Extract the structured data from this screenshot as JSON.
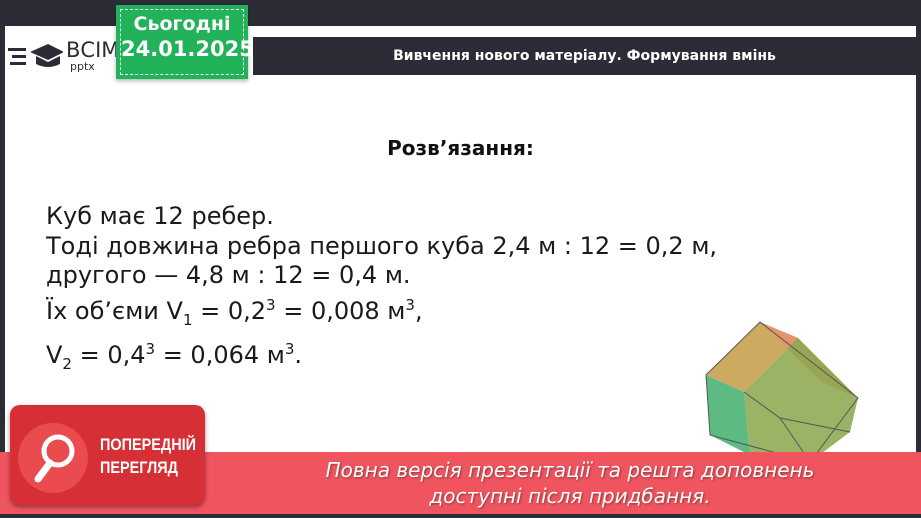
{
  "logo": {
    "brand": "ВСІМ",
    "sub": "pptx"
  },
  "date_tag": {
    "label": "Сьогодні",
    "date": "24.01.2025"
  },
  "header": {
    "title": "Вивчення нового матеріалу.  Формування вмінь"
  },
  "content": {
    "title": "Розв’язання:",
    "line1": "Куб має 12 ребер.",
    "line2": "Тоді довжина ребра першого куба 2,4 м : 12 = 0,2 м,",
    "line3": "другого — 4,8 м : 12 = 0,4 м.",
    "line4_a": "Їх об’єми V",
    "line4_sub": "1",
    "line4_b": " = 0,2",
    "line4_sup": "3",
    "line4_c": " = 0,008 м",
    "line4_sup2": "3",
    "line4_d": ",",
    "line5_a": "V",
    "line5_sub": "2",
    "line5_b": " = 0,4",
    "line5_sup": "3",
    "line5_c": " = 0,064 м",
    "line5_sup2": "3",
    "line5_d": "."
  },
  "preview": {
    "line1": "ПОПЕРЕДНІЙ",
    "line2": "ПЕРЕГЛЯД",
    "icon": "magnifier-icon"
  },
  "banner": {
    "line1": "Повна версія презентації та решта доповнень",
    "line2": "доступні після придбання."
  },
  "colors": {
    "green": "#22b25a",
    "dark": "#2b2c35",
    "red": "#f0555f"
  }
}
